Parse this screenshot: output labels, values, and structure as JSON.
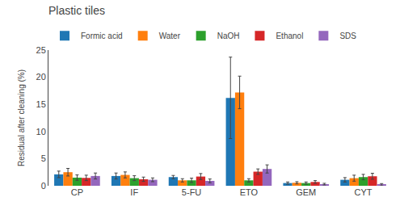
{
  "chart_data": {
    "type": "bar",
    "title": "Plastic tiles",
    "ylabel": "Residual after cleaning (%)",
    "categories": [
      "CP",
      "IF",
      "5-FU",
      "ETO",
      "GEM",
      "CYT"
    ],
    "series": [
      {
        "name": "Formic acid",
        "values": [
          2.1,
          1.8,
          1.6,
          16.2,
          0.5,
          1.1
        ],
        "errors": [
          0.6,
          0.55,
          0.3,
          7.5,
          0.2,
          0.4
        ]
      },
      {
        "name": "Water",
        "values": [
          2.5,
          2.0,
          1.0,
          17.2,
          0.55,
          1.4
        ],
        "errors": [
          0.7,
          0.55,
          0.3,
          3.0,
          0.2,
          0.55
        ]
      },
      {
        "name": "NaOH",
        "values": [
          1.5,
          1.4,
          1.0,
          1.0,
          0.5,
          1.6
        ],
        "errors": [
          0.5,
          0.45,
          0.4,
          0.3,
          0.2,
          0.5
        ]
      },
      {
        "name": "Ethanol",
        "values": [
          1.45,
          1.2,
          1.7,
          2.6,
          0.7,
          1.75
        ],
        "errors": [
          0.5,
          0.4,
          0.55,
          0.5,
          0.25,
          0.55
        ]
      },
      {
        "name": "SDS",
        "values": [
          1.8,
          1.1,
          0.9,
          3.1,
          0.3,
          0.2
        ],
        "errors": [
          0.55,
          0.35,
          0.35,
          0.75,
          0.15,
          0.2
        ]
      }
    ],
    "ylim": [
      0,
      25
    ],
    "yticks": [
      0,
      5,
      10,
      15,
      20,
      25
    ],
    "grid": false,
    "legend": "upper left"
  }
}
